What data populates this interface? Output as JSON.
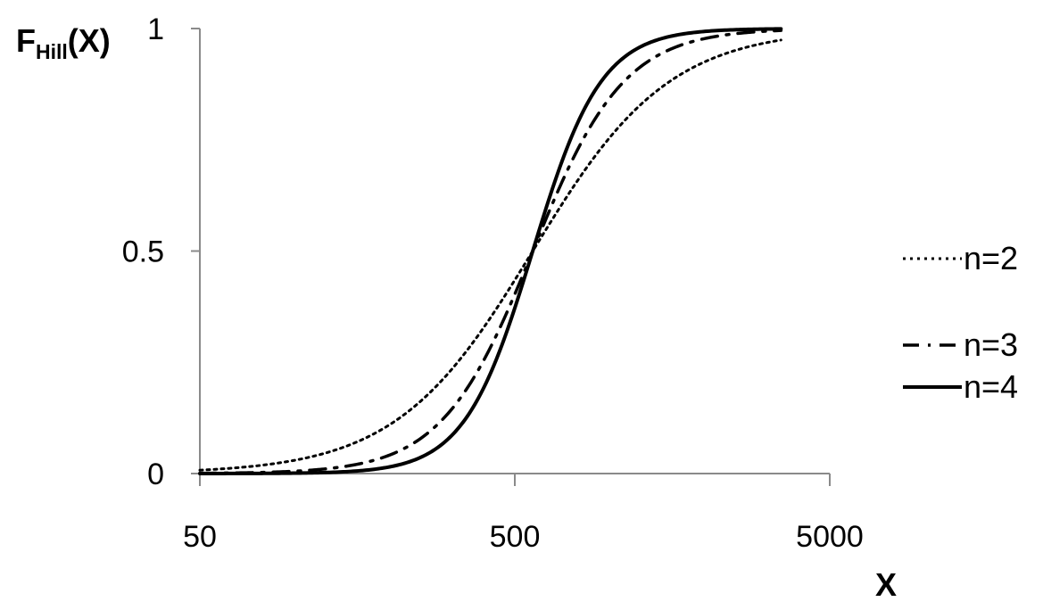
{
  "chart_data": {
    "type": "line",
    "xscale": "log",
    "xlim": [
      50,
      5000
    ],
    "ylim": [
      0,
      1
    ],
    "x_ticks": [
      50,
      500,
      5000
    ],
    "x_tick_labels": [
      "50",
      "500",
      "5000"
    ],
    "y_ticks": [
      0,
      0.5,
      1
    ],
    "y_tick_labels": [
      "0",
      "0.5",
      "1"
    ],
    "ylabel": {
      "main": "F",
      "sub": "Hill",
      "suffix": "(X)"
    },
    "xlabel": "X",
    "legend_position": "right",
    "grid": false,
    "line_color": "#000000",
    "K": 570,
    "x_domain_data": [
      50,
      3500
    ],
    "series": [
      {
        "name": "n=2",
        "hill_n": 2,
        "style": "dotted",
        "x": [
          50,
          100,
          200,
          300,
          400,
          500,
          570,
          700,
          1000,
          1500,
          2000,
          3000,
          3500
        ],
        "y": [
          0.008,
          0.03,
          0.11,
          0.22,
          0.33,
          0.43,
          0.5,
          0.6,
          0.75,
          0.87,
          0.92,
          0.97,
          0.97
        ]
      },
      {
        "name": "n=3",
        "hill_n": 3,
        "style": "dashdot",
        "x": [
          50,
          100,
          200,
          300,
          400,
          500,
          570,
          700,
          1000,
          1500,
          2000,
          3000,
          3500
        ],
        "y": [
          0.001,
          0.005,
          0.04,
          0.13,
          0.26,
          0.4,
          0.5,
          0.65,
          0.84,
          0.95,
          0.98,
          0.99,
          1.0
        ]
      },
      {
        "name": "n=4",
        "hill_n": 4,
        "style": "solid",
        "x": [
          50,
          100,
          200,
          300,
          400,
          500,
          570,
          700,
          1000,
          1500,
          2000,
          3000,
          3500
        ],
        "y": [
          0.0,
          0.001,
          0.015,
          0.07,
          0.2,
          0.37,
          0.5,
          0.69,
          0.9,
          0.98,
          0.99,
          1.0,
          1.0
        ]
      }
    ]
  }
}
